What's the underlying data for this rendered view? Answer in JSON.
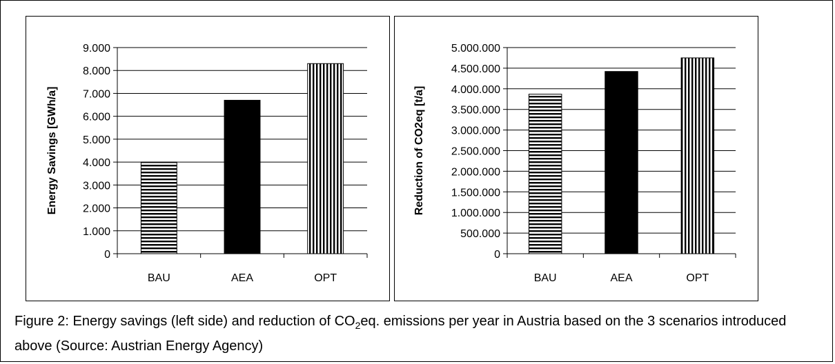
{
  "chart_data": [
    {
      "type": "bar",
      "categories": [
        "BAU",
        "AEA",
        "OPT"
      ],
      "values": [
        4000,
        6700,
        8300
      ],
      "ylabel": "Energy Savings [GWh/a]",
      "ylim": [
        0,
        9000
      ],
      "yticks": [
        "0",
        "1.000",
        "2.000",
        "3.000",
        "4.000",
        "5.000",
        "6.000",
        "7.000",
        "8.000",
        "9.000"
      ],
      "patterns": [
        "horizontal-stripes",
        "solid-black",
        "vertical-stripes"
      ],
      "grid": true
    },
    {
      "type": "bar",
      "categories": [
        "BAU",
        "AEA",
        "OPT"
      ],
      "values": [
        3870000,
        4420000,
        4750000
      ],
      "ylabel": "Reduction of CO2eq [t/a]",
      "ylim": [
        0,
        5000000
      ],
      "yticks": [
        "0",
        "500.000",
        "1.000.000",
        "1.500.000",
        "2.000.000",
        "2.500.000",
        "3.000.000",
        "3.500.000",
        "4.000.000",
        "4.500.000",
        "5.000.000"
      ],
      "patterns": [
        "horizontal-stripes",
        "solid-black",
        "vertical-stripes"
      ],
      "grid": true
    }
  ],
  "caption": {
    "part1": "Figure 2: Energy savings (left side) and reduction of CO",
    "sub": "2",
    "part2": "eq. emissions per year in Austria based on the 3 scenarios introduced above (Source: Austrian Energy Agency)"
  },
  "colors": {
    "bar": "#000000",
    "background": "#ffffff",
    "grid": "#000000"
  }
}
